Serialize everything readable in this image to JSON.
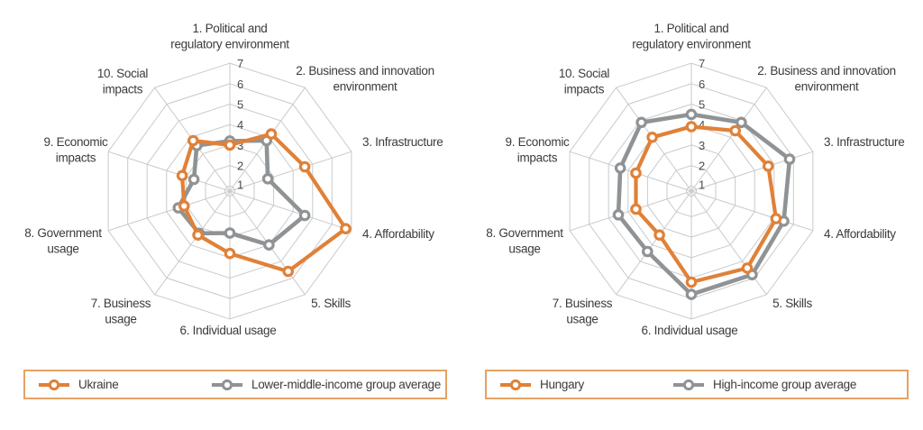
{
  "colors": {
    "series_primary": "#E08138",
    "series_average": "#909395",
    "grid": "#C9CACB",
    "text": "#3B3B3B",
    "legend_border": "#E5A263"
  },
  "scale": {
    "min": 1,
    "max": 7,
    "tick_labels": [
      "1",
      "2",
      "3",
      "4",
      "5",
      "6",
      "7"
    ]
  },
  "chart_data": [
    {
      "type": "radar",
      "title": "",
      "categories": [
        "1. Political and regulatory environment",
        "2. Business and innovation environment",
        "3. Infrastructure",
        "4. Affordability",
        "5. Skills",
        "6. Individual usage",
        "7. Business usage",
        "8. Government usage",
        "9. Economic impacts",
        "10. Social impacts"
      ],
      "category_lines": [
        [
          "1. Political and",
          "regulatory environment"
        ],
        [
          "2. Business and innovation",
          "environment"
        ],
        [
          "3. Infrastructure"
        ],
        [
          "4. Affordability"
        ],
        [
          "5. Skills"
        ],
        [
          "6. Individual usage"
        ],
        [
          "7. Business",
          "usage"
        ],
        [
          "8. Government",
          "usage"
        ],
        [
          "9. Economic",
          "impacts"
        ],
        [
          "10. Social",
          "impacts"
        ]
      ],
      "axis_range": [
        1,
        7
      ],
      "tick_labels": [
        "1",
        "2",
        "3",
        "4",
        "5",
        "6",
        "7"
      ],
      "legend_position": "bottom",
      "grid": true,
      "series": [
        {
          "name": "Ukraine",
          "color": "#E08138",
          "values": [
            3.0,
            4.2,
            4.6,
            6.7,
            5.6,
            3.8,
            3.4,
            3.1,
            3.2,
            3.8
          ]
        },
        {
          "name": "Lower-middle-income group average",
          "color": "#909395",
          "values": [
            3.2,
            3.8,
            2.7,
            4.6,
            4.0,
            2.8,
            3.3,
            3.4,
            2.6,
            3.5
          ]
        }
      ]
    },
    {
      "type": "radar",
      "title": "",
      "categories": [
        "1. Political and regulatory environment",
        "2. Business and innovation environment",
        "3. Infrastructure",
        "4. Affordability",
        "5. Skills",
        "6. Individual usage",
        "7. Business usage",
        "8. Government usage",
        "9. Economic impacts",
        "10. Social impacts"
      ],
      "category_lines": [
        [
          "1. Political and",
          "regulatory environment"
        ],
        [
          "2. Business and innovation",
          "environment"
        ],
        [
          "3. Infrastructure"
        ],
        [
          "4. Affordability"
        ],
        [
          "5. Skills"
        ],
        [
          "6. Individual usage"
        ],
        [
          "7. Business",
          "usage"
        ],
        [
          "8. Government",
          "usage"
        ],
        [
          "9. Economic",
          "impacts"
        ],
        [
          "10. Social",
          "impacts"
        ]
      ],
      "axis_range": [
        1,
        7
      ],
      "tick_labels": [
        "1",
        "2",
        "3",
        "4",
        "5",
        "6",
        "7"
      ],
      "legend_position": "bottom",
      "grid": true,
      "series": [
        {
          "name": "Hungary",
          "color": "#E08138",
          "values": [
            3.9,
            4.4,
            4.7,
            5.1,
            5.4,
            5.2,
            3.4,
            3.6,
            3.6,
            4.0
          ]
        },
        {
          "name": "High-income group average",
          "color": "#909395",
          "values": [
            4.5,
            4.9,
            5.8,
            5.5,
            5.8,
            5.8,
            4.4,
            4.5,
            4.4,
            4.9
          ]
        }
      ]
    }
  ]
}
